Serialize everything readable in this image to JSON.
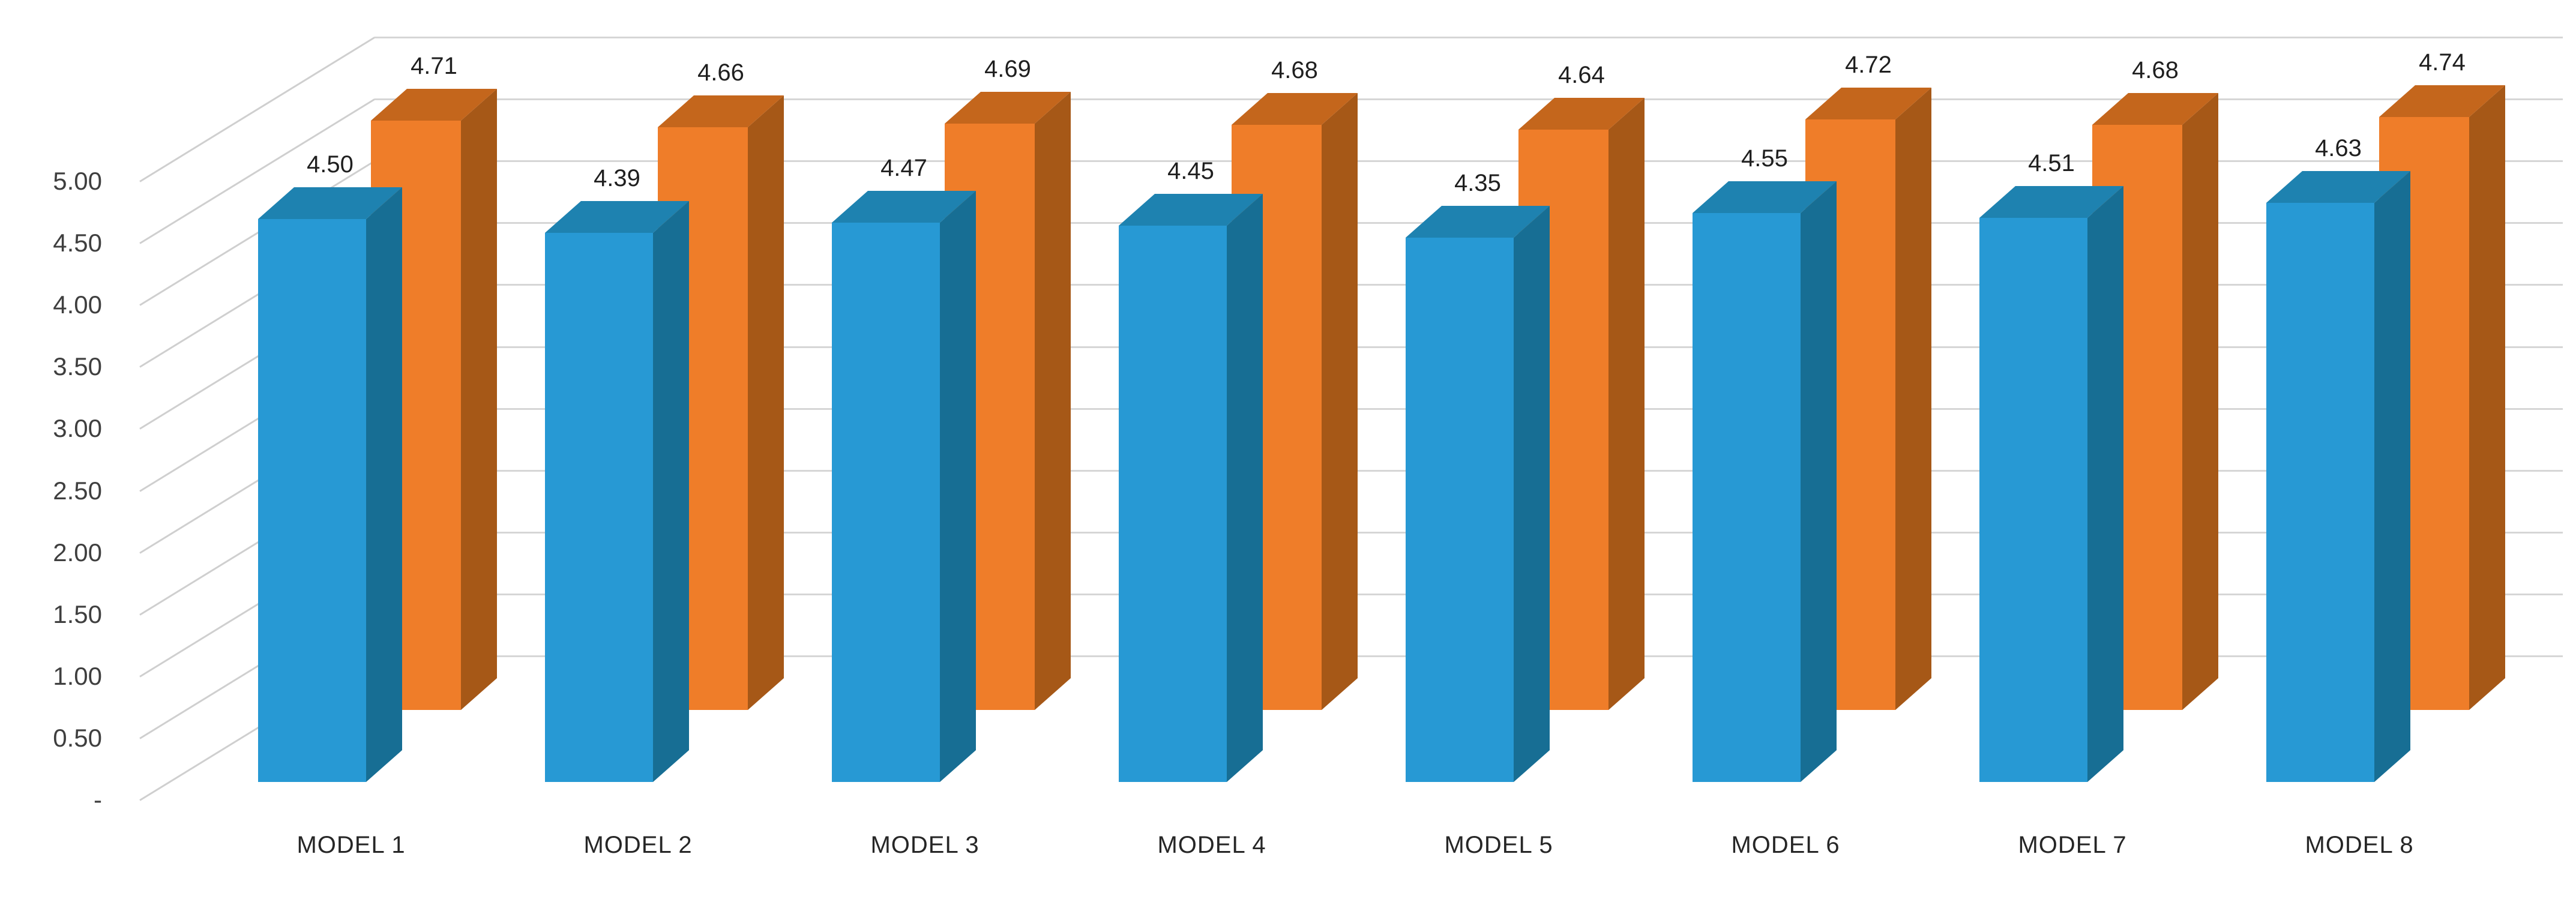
{
  "chart_data": {
    "type": "bar",
    "variant": "3d-clustered-column",
    "title": "",
    "categories": [
      "MODEL 1",
      "MODEL 2",
      "MODEL 3",
      "MODEL 4",
      "MODEL 5",
      "MODEL 6",
      "MODEL 7",
      "MODEL 8"
    ],
    "series": [
      {
        "id": "series-front-blue",
        "color_front": "#2799D4",
        "color_side": "#176E94",
        "color_top": "#1E82B0",
        "values": [
          4.5,
          4.39,
          4.47,
          4.45,
          4.35,
          4.55,
          4.51,
          4.63
        ],
        "labels": [
          "4.50",
          "4.39",
          "4.47",
          "4.45",
          "4.35",
          "4.55",
          "4.51",
          "4.63"
        ]
      },
      {
        "id": "series-back-orange",
        "color_front": "#EF7D29",
        "color_side": "#A65817",
        "color_top": "#C4661C",
        "values": [
          4.71,
          4.66,
          4.69,
          4.68,
          4.64,
          4.72,
          4.68,
          4.74
        ],
        "labels": [
          "4.71",
          "4.66",
          "4.69",
          "4.68",
          "4.64",
          "4.72",
          "4.68",
          "4.74"
        ]
      }
    ],
    "y_axis": {
      "min": 0,
      "max": 5,
      "step": 0.5,
      "ticks": [
        {
          "label": "5.00",
          "value": 5.0
        },
        {
          "label": "4.50",
          "value": 4.5
        },
        {
          "label": "4.00",
          "value": 4.0
        },
        {
          "label": "3.50",
          "value": 3.5
        },
        {
          "label": "3.00",
          "value": 3.0
        },
        {
          "label": "2.50",
          "value": 2.5
        },
        {
          "label": "2.00",
          "value": 2.0
        },
        {
          "label": "1.50",
          "value": 1.5
        },
        {
          "label": "1.00",
          "value": 1.0
        },
        {
          "label": "0.50",
          "value": 0.5
        },
        {
          "label": "-",
          "value": 0.0
        }
      ]
    },
    "grid": true,
    "legend": "none",
    "colors": {
      "gridline_wall": "#D6D6D6",
      "gridline_diagonal": "#CFCFCF",
      "axis_text": "#3F3F3F",
      "data_label_text": "#1F1F1F",
      "category_text": "#262626",
      "background": "#FFFFFF"
    }
  }
}
